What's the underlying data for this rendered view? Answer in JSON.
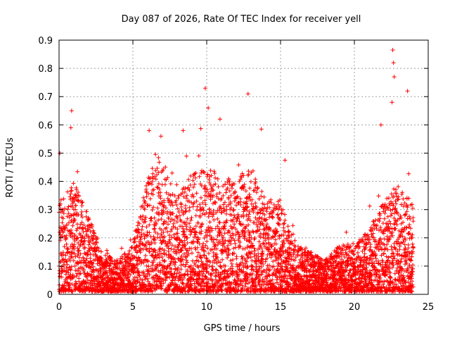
{
  "chart_data": {
    "type": "scatter",
    "title": "Day 087 of 2026, Rate Of TEC Index for receiver yell",
    "xlabel": "GPS time / hours",
    "ylabel": "ROTI / TECUs",
    "xlim": [
      0,
      25
    ],
    "ylim": [
      0,
      0.9
    ],
    "xticks": [
      0,
      5,
      10,
      15,
      20,
      25
    ],
    "yticks": [
      0,
      0.1,
      0.2,
      0.3,
      0.4,
      0.5,
      0.6,
      0.7,
      0.8,
      0.9
    ],
    "xtick_labels": [
      "0",
      "5",
      "10",
      "15",
      "20",
      "25"
    ],
    "ytick_labels": [
      "0",
      "0.1",
      "0.2",
      "0.3",
      "0.4",
      "0.5",
      "0.6",
      "0.7",
      "0.8",
      "0.9"
    ],
    "grid": true,
    "marker": "+",
    "marker_color": "#ff0000",
    "series": [
      {
        "name": "ROTI",
        "envelope_hours": [
          0,
          1,
          2,
          3,
          4,
          5,
          6,
          7,
          8,
          9,
          10,
          11,
          12,
          13,
          14,
          15,
          16,
          17,
          18,
          19,
          20,
          21,
          22,
          23,
          24
        ],
        "envelope_typical_max": [
          0.3,
          0.35,
          0.25,
          0.12,
          0.1,
          0.15,
          0.38,
          0.45,
          0.3,
          0.38,
          0.4,
          0.38,
          0.35,
          0.4,
          0.3,
          0.3,
          0.15,
          0.13,
          0.1,
          0.15,
          0.15,
          0.2,
          0.3,
          0.35,
          0.3
        ],
        "peaks": [
          {
            "x": 0.05,
            "y": 0.5
          },
          {
            "x": 0.85,
            "y": 0.65
          },
          {
            "x": 0.8,
            "y": 0.59
          },
          {
            "x": 6.1,
            "y": 0.58
          },
          {
            "x": 6.9,
            "y": 0.56
          },
          {
            "x": 8.4,
            "y": 0.58
          },
          {
            "x": 9.9,
            "y": 0.73
          },
          {
            "x": 10.1,
            "y": 0.66
          },
          {
            "x": 10.9,
            "y": 0.62
          },
          {
            "x": 12.8,
            "y": 0.71
          },
          {
            "x": 13.7,
            "y": 0.585
          },
          {
            "x": 15.3,
            "y": 0.475
          },
          {
            "x": 22.6,
            "y": 0.865
          },
          {
            "x": 22.65,
            "y": 0.82
          },
          {
            "x": 22.7,
            "y": 0.77
          },
          {
            "x": 22.55,
            "y": 0.68
          },
          {
            "x": 23.6,
            "y": 0.72
          },
          {
            "x": 21.8,
            "y": 0.6
          }
        ]
      }
    ]
  }
}
